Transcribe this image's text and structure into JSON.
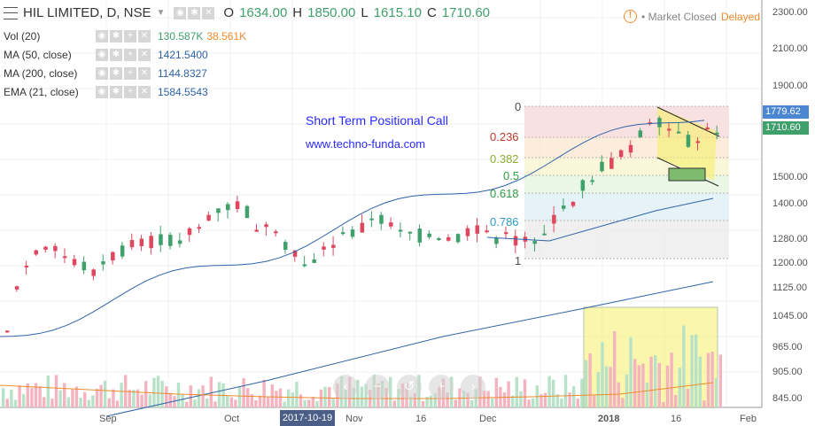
{
  "header": {
    "symbol": "HIL LIMITED, D, NSE",
    "open_label": "O",
    "open": "1634.00",
    "high_label": "H",
    "high": "1850.00",
    "low_label": "L",
    "low": "1615.10",
    "close_label": "C",
    "close": "1710.60"
  },
  "indicators": [
    {
      "name": "Vol (20)",
      "value": "130.587K",
      "value2": "38.561K",
      "color": "#3fa06b",
      "color2": "#f08b2c"
    },
    {
      "name": "MA (50, close)",
      "value": "1421.5400",
      "color": "#2e63a8"
    },
    {
      "name": "MA (200, close)",
      "value": "1144.8327",
      "color": "#2e63a8"
    },
    {
      "name": "EMA (21, close)",
      "value": "1584.5543",
      "color": "#2e63a8"
    }
  ],
  "status": {
    "icon": "warning-icon",
    "market": "Market Closed",
    "delay": "Delayed"
  },
  "annotations": {
    "title": "Short Term Positional Call",
    "url": "www.techno-funda.com"
  },
  "price_axis": [
    "2300.00",
    "2100.00",
    "1900.00",
    "1500.00",
    "1400.00",
    "1280.00",
    "1200.00",
    "1125.00",
    "1045.00",
    "965.00",
    "905.00",
    "845.00"
  ],
  "price_tags": [
    {
      "text": "1779.62",
      "color": "#4a87d0"
    },
    {
      "text": "1710.60",
      "color": "#3fa06b"
    }
  ],
  "time_axis": [
    "Sep",
    "Oct",
    "Nov",
    "16",
    "Dec",
    "2018",
    "16",
    "Feb"
  ],
  "selected_date": "2017-10-19",
  "fibonacci": [
    {
      "level": "0",
      "color": "#444"
    },
    {
      "level": "0.236",
      "color": "#c0392b"
    },
    {
      "level": "0.382",
      "color": "#8bb12e"
    },
    {
      "level": "0.5",
      "color": "#2f9d3f"
    },
    {
      "level": "0.618",
      "color": "#2f9d3f"
    },
    {
      "level": "0.786",
      "color": "#2d9cc9"
    },
    {
      "level": "1",
      "color": "#444"
    }
  ],
  "zoom_controls": [
    "chevron-left-icon",
    "zoom-out-icon",
    "reset-icon",
    "zoom-in-icon",
    "chevron-right-icon"
  ],
  "colors": {
    "up": "#3fa06b",
    "down": "#e0475e",
    "ma": "#2e63a8",
    "highlight": "#f7f06a"
  }
}
